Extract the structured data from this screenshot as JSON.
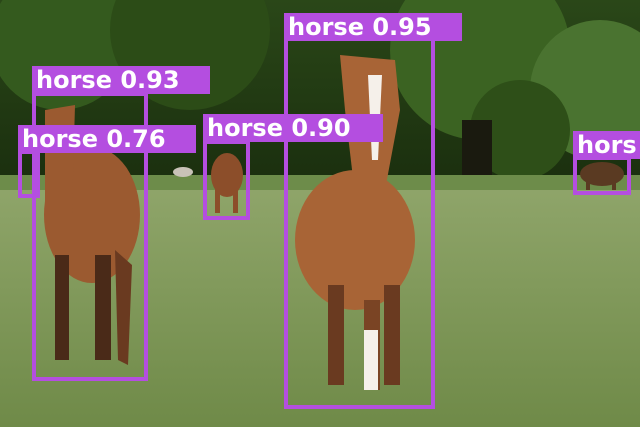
{
  "detections": [
    {
      "label": "horse 0.95"
    },
    {
      "label": "horse 0.93"
    },
    {
      "label": "horse 0.76"
    },
    {
      "label": "horse 0.90"
    },
    {
      "label": "hors"
    }
  ],
  "colors": {
    "box": "#b44ee0",
    "label_text": "#ffffff",
    "foliage_dark": "#1f3a12",
    "grass": "#7f9a5a",
    "horse_coat": "#9b5a30"
  }
}
